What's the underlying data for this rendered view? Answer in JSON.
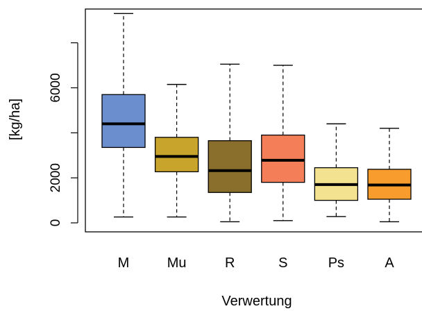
{
  "chart_data": {
    "type": "box",
    "title": "",
    "xlabel": "Verwertung",
    "ylabel": "[kg/ha]",
    "ylim": [
      -400,
      9500
    ],
    "yticks": [
      0,
      2000,
      6000
    ],
    "categories": [
      "M",
      "Mu",
      "R",
      "S",
      "Ps",
      "A"
    ],
    "colors": [
      "#6b8fce",
      "#c9a42c",
      "#8a6f2c",
      "#f47e57",
      "#f3e28f",
      "#f89d2d"
    ],
    "series": [
      {
        "category": "M",
        "min": 260,
        "q1": 3350,
        "median": 4400,
        "q3": 5700,
        "max": 9300
      },
      {
        "category": "Mu",
        "min": 260,
        "q1": 2270,
        "median": 2950,
        "q3": 3800,
        "max": 6150
      },
      {
        "category": "R",
        "min": 50,
        "q1": 1350,
        "median": 2320,
        "q3": 3650,
        "max": 7050
      },
      {
        "category": "S",
        "min": 100,
        "q1": 1800,
        "median": 2780,
        "q3": 3900,
        "max": 7000
      },
      {
        "category": "Ps",
        "min": 280,
        "q1": 1000,
        "median": 1700,
        "q3": 2450,
        "max": 4400
      },
      {
        "category": "A",
        "min": 50,
        "q1": 1050,
        "median": 1680,
        "q3": 2380,
        "max": 4200
      }
    ]
  }
}
